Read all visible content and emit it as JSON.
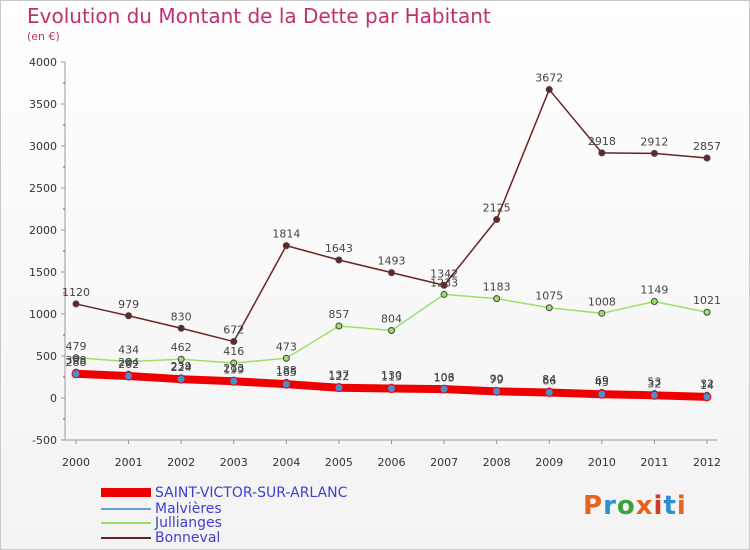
{
  "header": {
    "title": "Evolution du Montant de la Dette par Habitant",
    "subtitle": "(en €)"
  },
  "logo": {
    "text": "Proxiti",
    "colors": [
      "#e8641e",
      "#2a8fd6",
      "#3aa33a",
      "#e8641e",
      "#d43a2a",
      "#2a8fd6",
      "#e8641e"
    ]
  },
  "chart_data": {
    "type": "line",
    "x": [
      "2000",
      "2001",
      "2002",
      "2003",
      "2004",
      "2005",
      "2006",
      "2007",
      "2008",
      "2009",
      "2010",
      "2011",
      "2012"
    ],
    "ylim": [
      -500,
      4000
    ],
    "yticks": [
      "-500",
      "0",
      "500",
      "1000",
      "1500",
      "2000",
      "2500",
      "3000",
      "3500",
      "4000"
    ],
    "grid": false,
    "legend_position": "bottom-left",
    "series": [
      {
        "name": "SAINT-VICTOR-SUR-ARLANC",
        "color": "#ee0000",
        "values": [
          288,
          262,
          224,
          199,
          165,
          122,
          113,
          106,
          79,
          66,
          45,
          32,
          14
        ],
        "labels": [
          "288",
          "262",
          "224",
          "199",
          "165",
          "122",
          "113",
          "106",
          "79",
          "66",
          "45",
          "32",
          "14"
        ]
      },
      {
        "name": "Malvières",
        "color": "#6b9fd8",
        "values": [
          308,
          284,
          239,
          213,
          188,
          137,
          130,
          103,
          90,
          84,
          69,
          53,
          32
        ],
        "labels": [
          "308",
          "284",
          "239",
          "213",
          "188",
          "137",
          "130",
          "103",
          "90",
          "84",
          "69",
          "53",
          "32"
        ]
      },
      {
        "name": "Jullianges",
        "color": "#9be068",
        "values": [
          479,
          434,
          462,
          416,
          473,
          857,
          804,
          1233,
          1183,
          1075,
          1008,
          1149,
          1021
        ],
        "labels": [
          "479",
          "434",
          "462",
          "416",
          "473",
          "857",
          "804",
          "1233",
          "1183",
          "1075",
          "1008",
          "1149",
          "1021"
        ]
      },
      {
        "name": "Bonneval",
        "color": "#6b2424",
        "values": [
          1120,
          979,
          830,
          672,
          1814,
          1643,
          1493,
          1342,
          2125,
          3672,
          2918,
          2912,
          2857
        ],
        "labels": [
          "1120",
          "979",
          "830",
          "672",
          "1814",
          "1643",
          "1493",
          "1342",
          "2125",
          "3672",
          "2918",
          "2912",
          "2857"
        ]
      }
    ]
  }
}
